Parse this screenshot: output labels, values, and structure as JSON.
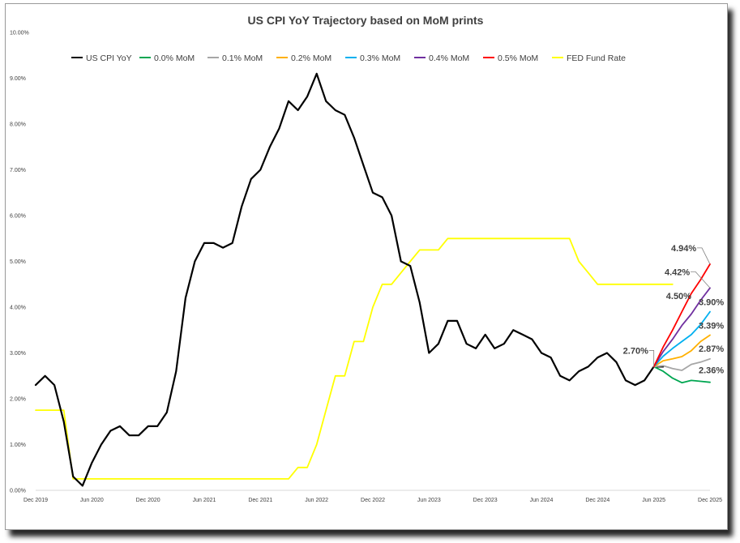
{
  "chart_data": {
    "type": "line",
    "title": "US CPI YoY Trajectory based on MoM prints",
    "xlabel": "",
    "ylabel": "",
    "ylim": [
      0,
      10
    ],
    "y_ticks": [
      "0.00%",
      "1.00%",
      "2.00%",
      "3.00%",
      "4.00%",
      "5.00%",
      "6.00%",
      "7.00%",
      "8.00%",
      "9.00%",
      "10.00%"
    ],
    "x_ticks": [
      "Dec 2019",
      "Jun 2020",
      "Dec 2020",
      "Jun 2021",
      "Dec 2021",
      "Jun 2022",
      "Dec 2022",
      "Jun 2023",
      "Dec 2023",
      "Jun 2024",
      "Dec 2024",
      "Jun 2025",
      "Dec 2025"
    ],
    "x_range": [
      "2019-12",
      "2025-12"
    ],
    "legend_position": "top",
    "grid": false,
    "series": [
      {
        "name": "US CPI YoY",
        "color": "#000000",
        "start": "2019-12",
        "values": [
          2.3,
          2.5,
          2.3,
          1.5,
          0.3,
          0.1,
          0.6,
          1.0,
          1.3,
          1.4,
          1.2,
          1.2,
          1.4,
          1.4,
          1.7,
          2.6,
          4.2,
          5.0,
          5.4,
          5.4,
          5.3,
          5.4,
          6.2,
          6.8,
          7.0,
          7.5,
          7.9,
          8.5,
          8.3,
          8.6,
          9.1,
          8.5,
          8.3,
          8.2,
          7.7,
          7.1,
          6.5,
          6.4,
          6.0,
          5.0,
          4.9,
          4.1,
          3.0,
          3.2,
          3.7,
          3.7,
          3.2,
          3.1,
          3.4,
          3.1,
          3.2,
          3.5,
          3.4,
          3.3,
          3.0,
          2.9,
          2.5,
          2.4,
          2.6,
          2.7,
          2.9,
          3.0,
          2.8,
          2.4,
          2.3,
          2.4,
          2.7,
          2.7
        ]
      },
      {
        "name": "0.0% MoM",
        "color": "#00a651",
        "start": "2025-06",
        "values": [
          2.7,
          2.6,
          2.45,
          2.35,
          2.4,
          2.38,
          2.36
        ]
      },
      {
        "name": "0.1% MoM",
        "color": "#a6a6a6",
        "start": "2025-06",
        "values": [
          2.7,
          2.72,
          2.66,
          2.62,
          2.75,
          2.8,
          2.87
        ]
      },
      {
        "name": "0.2% MoM",
        "color": "#ffb000",
        "start": "2025-06",
        "values": [
          2.7,
          2.83,
          2.87,
          2.92,
          3.05,
          3.25,
          3.39
        ]
      },
      {
        "name": "0.3% MoM",
        "color": "#00b0f0",
        "start": "2025-06",
        "values": [
          2.7,
          2.93,
          3.1,
          3.25,
          3.4,
          3.62,
          3.9
        ]
      },
      {
        "name": "0.4% MoM",
        "color": "#7030a0",
        "start": "2025-06",
        "values": [
          2.7,
          3.03,
          3.3,
          3.6,
          3.85,
          4.15,
          4.42
        ]
      },
      {
        "name": "0.5% MoM",
        "color": "#ff0000",
        "start": "2025-06",
        "values": [
          2.7,
          3.13,
          3.5,
          3.9,
          4.3,
          4.6,
          4.94
        ]
      },
      {
        "name": "FED Fund Rate",
        "color": "#ffff00",
        "start": "2019-12",
        "values": [
          1.75,
          1.75,
          1.75,
          1.75,
          0.25,
          0.25,
          0.25,
          0.25,
          0.25,
          0.25,
          0.25,
          0.25,
          0.25,
          0.25,
          0.25,
          0.25,
          0.25,
          0.25,
          0.25,
          0.25,
          0.25,
          0.25,
          0.25,
          0.25,
          0.25,
          0.25,
          0.25,
          0.25,
          0.5,
          0.5,
          1.0,
          1.75,
          2.5,
          2.5,
          3.25,
          3.25,
          4.0,
          4.5,
          4.5,
          4.75,
          5.0,
          5.25,
          5.25,
          5.25,
          5.5,
          5.5,
          5.5,
          5.5,
          5.5,
          5.5,
          5.5,
          5.5,
          5.5,
          5.5,
          5.5,
          5.5,
          5.5,
          5.5,
          5.0,
          4.75,
          4.5,
          4.5,
          4.5,
          4.5,
          4.5,
          4.5,
          4.5,
          4.5,
          4.5
        ]
      }
    ],
    "annotations": [
      {
        "text": "2.70%",
        "series": "US CPI YoY",
        "at": "2025-06",
        "value": 2.7
      },
      {
        "text": "4.50%",
        "series": "FED Fund Rate",
        "at": "2025-08",
        "value": 4.5
      },
      {
        "text": "4.94%",
        "series": "0.5% MoM",
        "at": "2025-12",
        "value": 4.94
      },
      {
        "text": "4.42%",
        "series": "0.4% MoM",
        "at": "2025-12",
        "value": 4.42
      },
      {
        "text": "3.90%",
        "series": "0.3% MoM",
        "at": "2025-12",
        "value": 3.9
      },
      {
        "text": "3.39%",
        "series": "0.2% MoM",
        "at": "2025-12",
        "value": 3.39
      },
      {
        "text": "2.87%",
        "series": "0.1% MoM",
        "at": "2025-12",
        "value": 2.87
      },
      {
        "text": "2.36%",
        "series": "0.0% MoM",
        "at": "2025-12",
        "value": 2.36
      }
    ]
  }
}
